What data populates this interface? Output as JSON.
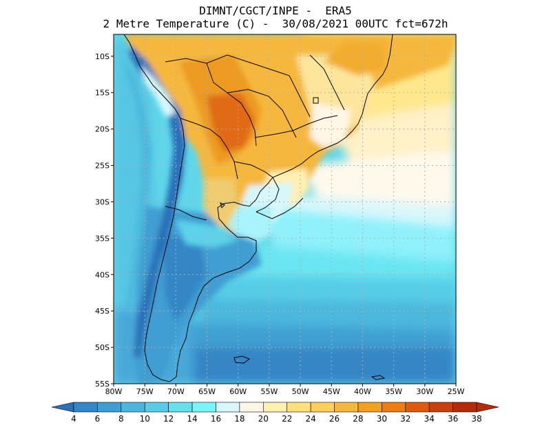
{
  "title": {
    "line1": "DIMNT/CGCT/INPE -  ERA5",
    "line2": "2 Metre Temperature (C) -  30/08/2021 00UTC fct=672h"
  },
  "map": {
    "lon_range": [
      -80,
      -25
    ],
    "lat_range": [
      -55,
      -7
    ],
    "lat_ticks": [
      "10S",
      "15S",
      "20S",
      "25S",
      "30S",
      "35S",
      "40S",
      "45S",
      "50S",
      "55S"
    ],
    "lon_ticks": [
      "80W",
      "75W",
      "70W",
      "65W",
      "60W",
      "55W",
      "50W",
      "45W",
      "40W",
      "35W",
      "30W",
      "25W"
    ],
    "coast_color": "#000000",
    "grid_color": "#b0b0b0"
  },
  "colorbar": {
    "labels": [
      "4",
      "6",
      "8",
      "10",
      "12",
      "14",
      "16",
      "18",
      "20",
      "22",
      "24",
      "26",
      "28",
      "30",
      "32",
      "34",
      "36",
      "38"
    ],
    "colors": [
      "#2a6fb8",
      "#3486c6",
      "#3f9ed2",
      "#4cb7dd",
      "#58cce6",
      "#66e0ef",
      "#7af4fb",
      "#d8f7fa",
      "#fff6e6",
      "#fff0b0",
      "#ffe07a",
      "#fcce5a",
      "#f5b83c",
      "#f29e1e",
      "#ec7d12",
      "#df5a0c",
      "#c8400a",
      "#b52b08"
    ]
  }
}
